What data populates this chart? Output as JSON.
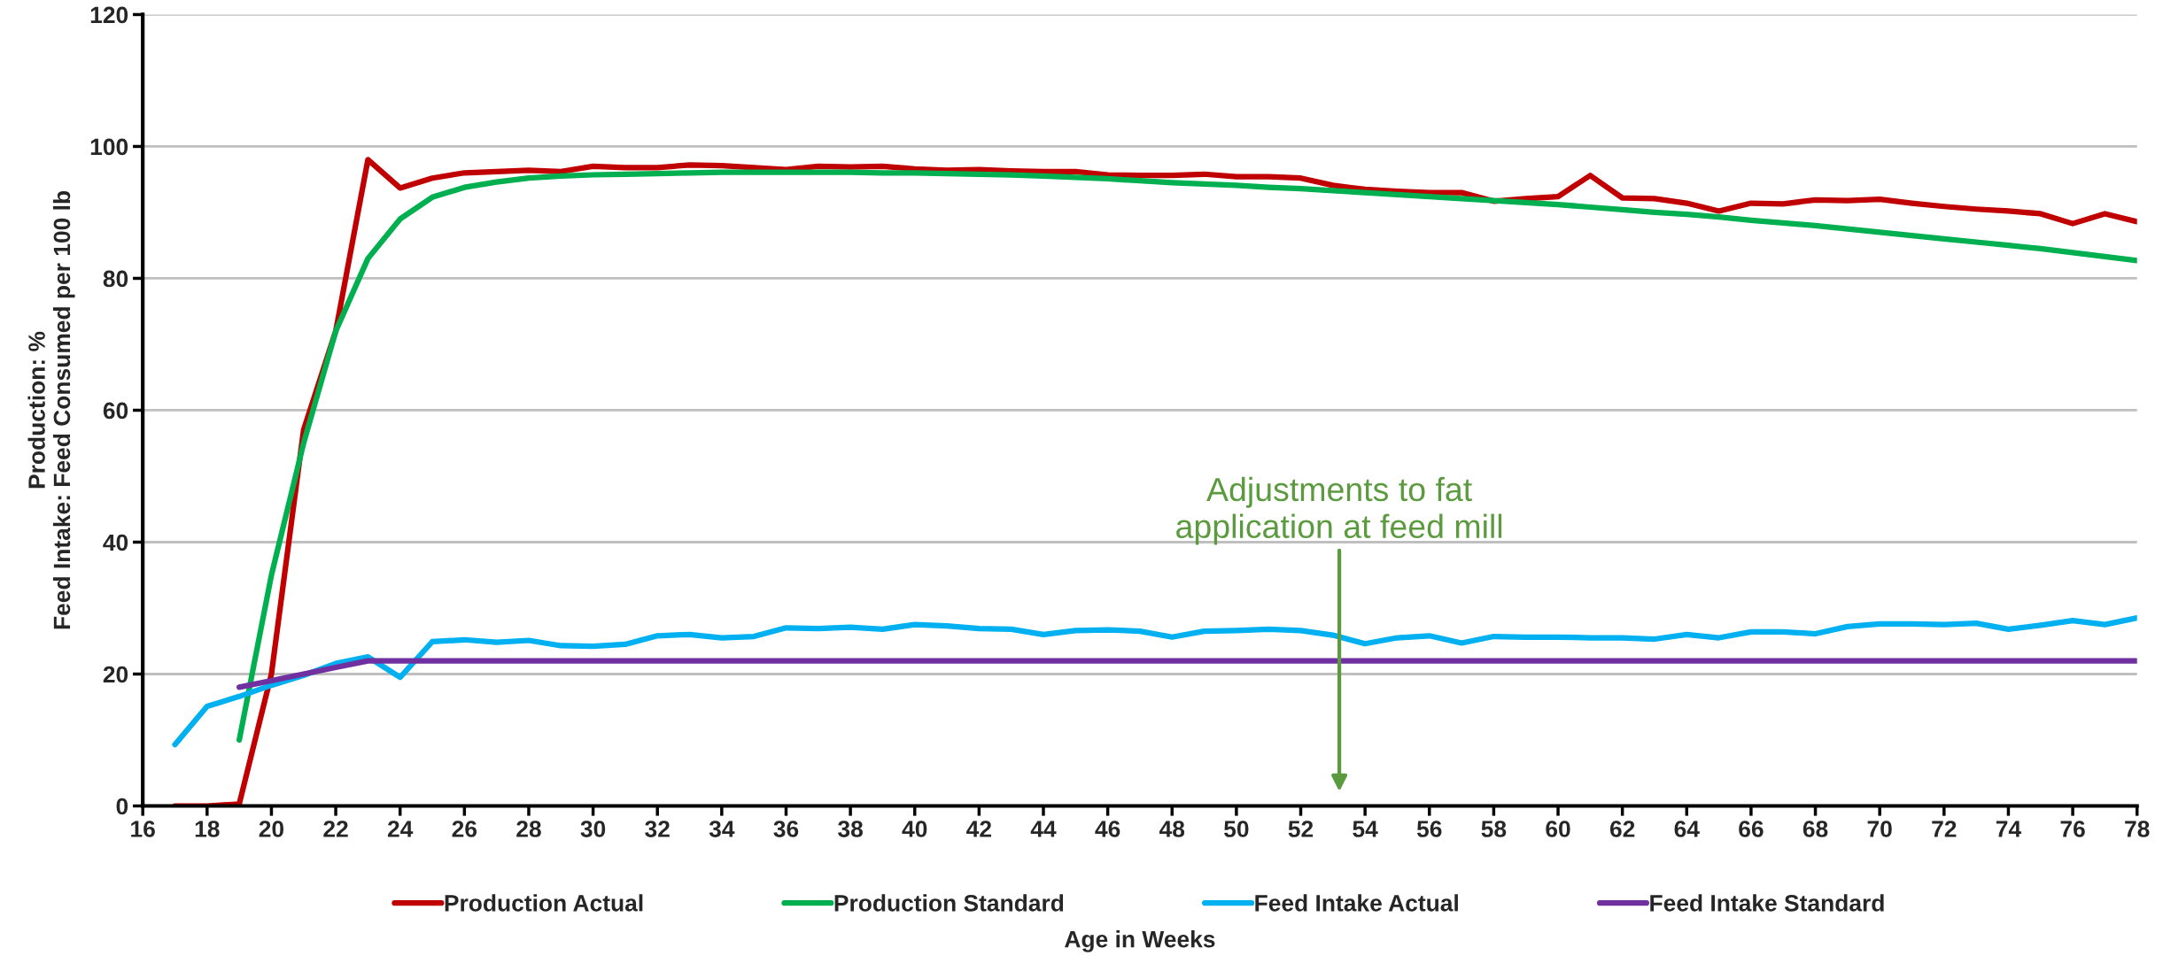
{
  "chart_data": {
    "type": "line",
    "xlabel": "Age in Weeks",
    "ylabel": "Production: %\nFeed Intake: Feed Consumed per 100 lb",
    "x": [
      17,
      18,
      19,
      20,
      21,
      22,
      23,
      24,
      25,
      26,
      27,
      28,
      29,
      30,
      31,
      32,
      33,
      34,
      35,
      36,
      37,
      38,
      39,
      40,
      41,
      42,
      43,
      44,
      45,
      46,
      47,
      48,
      49,
      50,
      51,
      52,
      53,
      54,
      55,
      56,
      57,
      58,
      59,
      60,
      61,
      62,
      63,
      64,
      65,
      66,
      67,
      68,
      69,
      70,
      71,
      72,
      73,
      74,
      75,
      76,
      77,
      78
    ],
    "series": [
      {
        "name": "Production Actual",
        "color": "#c00000",
        "values": [
          0,
          0,
          0.3,
          20,
          57,
          72,
          98,
          93.7,
          95.2,
          96,
          96.2,
          96.4,
          96.2,
          97,
          96.8,
          96.8,
          97.2,
          97.1,
          96.8,
          96.5,
          97,
          96.9,
          97,
          96.6,
          96.4,
          96.5,
          96.3,
          96.2,
          96.2,
          95.7,
          95.6,
          95.6,
          95.8,
          95.4,
          95.4,
          95.2,
          94.1,
          93.5,
          93.2,
          93,
          93,
          91.7,
          92.1,
          92.4,
          95.6,
          92.2,
          92.1,
          91.4,
          90.2,
          91.4,
          91.3,
          91.9,
          91.8,
          92,
          91.4,
          90.9,
          90.5,
          90.2,
          89.8,
          88.3,
          89.8,
          88.6
        ]
      },
      {
        "name": "Production Standard",
        "color": "#00b050",
        "values": [
          null,
          null,
          10,
          35,
          55,
          72,
          83,
          89,
          92.3,
          93.8,
          94.6,
          95.2,
          95.5,
          95.7,
          95.8,
          95.9,
          96,
          96.1,
          96.1,
          96.1,
          96.1,
          96.1,
          96,
          96,
          95.9,
          95.8,
          95.7,
          95.5,
          95.3,
          95.1,
          94.8,
          94.5,
          94.3,
          94.1,
          93.8,
          93.6,
          93.3,
          93,
          92.7,
          92.4,
          92.1,
          91.8,
          91.5,
          91.2,
          90.8,
          90.4,
          90,
          89.7,
          89.3,
          88.8,
          88.4,
          88,
          87.5,
          87,
          86.5,
          86,
          85.5,
          85,
          84.5,
          83.9,
          83.3,
          82.7
        ]
      },
      {
        "name": "Feed Intake Actual",
        "color": "#00b0f0",
        "values": [
          9.3,
          15.1,
          16.6,
          18.3,
          19.8,
          21.6,
          22.6,
          19.5,
          24.9,
          25.2,
          24.8,
          25.1,
          24.3,
          24.2,
          24.5,
          25.8,
          26,
          25.5,
          25.7,
          27,
          26.9,
          27.1,
          26.8,
          27.5,
          27.3,
          26.9,
          26.8,
          26,
          26.6,
          26.7,
          26.5,
          25.6,
          26.5,
          26.6,
          26.8,
          26.6,
          25.9,
          24.6,
          25.5,
          25.8,
          24.7,
          25.7,
          25.6,
          25.6,
          25.5,
          25.5,
          25.3,
          26,
          25.5,
          26.4,
          26.4,
          26.1,
          27.2,
          27.6,
          27.6,
          27.5,
          27.7,
          26.8,
          27.4,
          28.1,
          27.5,
          28.5
        ]
      },
      {
        "name": "Feed Intake Standard",
        "color": "#7030a0",
        "values": [
          null,
          null,
          18,
          19,
          20,
          21,
          22,
          22,
          22,
          22,
          22,
          22,
          22,
          22,
          22,
          22,
          22,
          22,
          22,
          22,
          22,
          22,
          22,
          22,
          22,
          22,
          22,
          22,
          22,
          22,
          22,
          22,
          22,
          22,
          22,
          22,
          22,
          22,
          22,
          22,
          22,
          22,
          22,
          22,
          22,
          22,
          22,
          22,
          22,
          22,
          22,
          22,
          22,
          22,
          22,
          22,
          22,
          22,
          22,
          22,
          22,
          22
        ]
      }
    ],
    "annotations": [
      "Adjustments to fat\napplication at feed mill"
    ],
    "xlim": [
      16,
      78
    ],
    "xticks": [
      16,
      18,
      20,
      22,
      24,
      26,
      28,
      30,
      32,
      34,
      36,
      38,
      40,
      42,
      44,
      46,
      48,
      50,
      52,
      54,
      56,
      58,
      60,
      62,
      64,
      66,
      68,
      70,
      72,
      74,
      76,
      78
    ],
    "ylim": [
      0,
      120
    ],
    "yticks": [
      0,
      20,
      40,
      60,
      80,
      100,
      120
    ],
    "grid": "y",
    "legend": "bottom",
    "marker": "none",
    "line_style": "solid"
  }
}
